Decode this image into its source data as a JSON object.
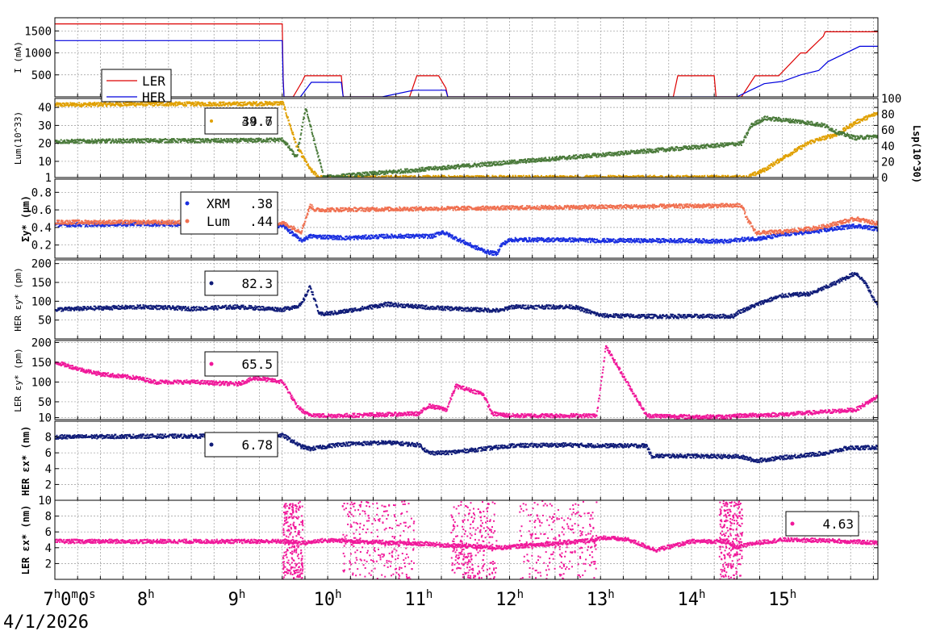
{
  "date": "4/1/2026",
  "x_tick_labels": [
    "7h0m0s",
    "8h",
    "9h",
    "10h",
    "11h",
    "12h",
    "13h",
    "14h",
    "15h"
  ],
  "colors": {
    "ler_current": "#dd0000",
    "her_current": "#0000dd",
    "lsp": "#e0a000",
    "lum": "#4a7a3a",
    "xrm": "#1a2fe0",
    "lum_size": "#f07050",
    "her": "#101c78",
    "ler": "#f0189a"
  },
  "chart_data": [
    {
      "type": "line",
      "ylabel": "I (mA)",
      "x_range_hours": [
        7,
        16.05
      ],
      "ylim": [
        0,
        1800
      ],
      "yticks": [
        "500",
        "1000",
        "1500"
      ],
      "grid": true,
      "legend": "top-left",
      "series": [
        {
          "name": "LER",
          "color": "#dd0000",
          "x": [
            7.0,
            9.5,
            9.51,
            9.52,
            9.62,
            9.72,
            9.75,
            10.15,
            10.17,
            10.9,
            10.98,
            11.22,
            11.3,
            11.32,
            12.2,
            13.8,
            13.85,
            14.25,
            14.27,
            14.3,
            14.55,
            14.65,
            14.7,
            14.96,
            15.2,
            15.26,
            15.45,
            15.47,
            16.05
          ],
          "y": [
            1660,
            1660,
            450,
            0,
            0,
            350,
            480,
            480,
            0,
            0,
            480,
            480,
            200,
            0,
            0,
            0,
            480,
            480,
            0,
            0,
            0,
            320,
            480,
            480,
            1000,
            1000,
            1380,
            1480,
            1480
          ]
        },
        {
          "name": "HER",
          "color": "#0000dd",
          "x": [
            7.0,
            9.5,
            9.51,
            9.52,
            9.7,
            9.82,
            10.15,
            10.17,
            10.6,
            10.95,
            11.3,
            11.32,
            14.5,
            14.65,
            14.8,
            15.0,
            15.2,
            15.4,
            15.5,
            15.7,
            15.85,
            16.05
          ],
          "y": [
            1280,
            1280,
            350,
            0,
            0,
            330,
            330,
            0,
            0,
            150,
            150,
            0,
            0,
            150,
            300,
            350,
            500,
            600,
            800,
            1000,
            1150,
            1150
          ]
        }
      ]
    },
    {
      "type": "scatter",
      "ylabel": "Lum(10^33)",
      "ylabel_right": "Lsp(10^30)",
      "ylim": [
        1,
        45
      ],
      "yticks": [
        "1",
        "10",
        "20",
        "30",
        "40"
      ],
      "yticks_right": [
        "0",
        "20",
        "40",
        "60",
        "80",
        "100"
      ],
      "legend": "top-center",
      "legend_value": "39.7",
      "legend_value_overlap": "44.6",
      "series": [
        {
          "name": "Lsp",
          "axis": "right",
          "color": "#e0a000",
          "x": [
            7.0,
            8.0,
            9.0,
            9.5,
            9.65,
            9.8,
            9.9,
            14.6,
            14.8,
            15.0,
            15.3,
            15.6,
            15.8,
            16.05
          ],
          "y": [
            92,
            93,
            93,
            94,
            40,
            10,
            0,
            0,
            10,
            25,
            45,
            55,
            70,
            82
          ]
        },
        {
          "name": "Lum",
          "axis": "left",
          "color": "#4a7a3a",
          "x": [
            7.0,
            8.0,
            9.0,
            9.5,
            9.65,
            9.75,
            9.85,
            9.95,
            14.55,
            14.65,
            14.8,
            15.0,
            15.2,
            15.45,
            15.6,
            15.8,
            16.05
          ],
          "y": [
            21,
            21.5,
            21.5,
            22,
            12,
            40,
            20,
            1,
            20,
            30,
            34,
            33,
            32,
            30,
            26,
            23,
            24
          ]
        }
      ]
    },
    {
      "type": "scatter",
      "ylabel": "Σy* (µm)",
      "ylim": [
        0.05,
        0.95
      ],
      "yticks": [
        "0.2",
        "0.4",
        "0.6",
        "0.8"
      ],
      "legend": "top-center",
      "series": [
        {
          "name": "XRM",
          "value": ".38",
          "color": "#1a2fe0",
          "x": [
            7.0,
            8.0,
            9.0,
            9.5,
            9.7,
            9.8,
            10.2,
            10.65,
            11.0,
            11.15,
            11.25,
            11.6,
            11.75,
            11.85,
            11.9,
            12.0,
            12.6,
            13.0,
            13.5,
            14.0,
            14.4,
            14.5,
            14.8,
            15.0,
            15.4,
            15.8,
            16.05
          ],
          "y": [
            0.43,
            0.44,
            0.43,
            0.42,
            0.25,
            0.3,
            0.28,
            0.3,
            0.3,
            0.3,
            0.35,
            0.18,
            0.12,
            0.1,
            0.2,
            0.26,
            0.26,
            0.25,
            0.25,
            0.25,
            0.24,
            0.26,
            0.28,
            0.32,
            0.36,
            0.42,
            0.38
          ]
        },
        {
          "name": "Lum",
          "value": ".44",
          "color": "#f07050",
          "x": [
            7.0,
            8.0,
            9.0,
            9.5,
            9.7,
            9.75,
            9.8,
            9.85,
            14.55,
            14.6,
            14.7,
            15.0,
            15.4,
            15.8,
            16.05
          ],
          "y": [
            0.46,
            0.46,
            0.45,
            0.45,
            0.35,
            0.5,
            0.65,
            0.6,
            0.65,
            0.5,
            0.34,
            0.35,
            0.4,
            0.5,
            0.44
          ]
        }
      ]
    },
    {
      "type": "scatter",
      "ylabel": "HER εy* (pm)",
      "ylim": [
        0,
        210
      ],
      "yticks": [
        "50",
        "100",
        "150",
        "200"
      ],
      "legend": "top-center",
      "series": [
        {
          "name": "HER εy*",
          "value": "82.3",
          "color": "#101c78",
          "x": [
            7.0,
            7.5,
            8.0,
            8.5,
            9.0,
            9.5,
            9.7,
            9.8,
            9.9,
            10.1,
            10.65,
            11.0,
            11.2,
            11.9,
            12.0,
            12.5,
            12.7,
            13.0,
            13.5,
            14.0,
            14.45,
            14.5,
            14.8,
            15.0,
            15.3,
            15.5,
            15.8,
            15.9,
            16.05
          ],
          "y": [
            78,
            82,
            85,
            80,
            85,
            78,
            90,
            140,
            65,
            70,
            92,
            85,
            82,
            75,
            85,
            85,
            85,
            62,
            60,
            60,
            60,
            70,
            100,
            115,
            120,
            140,
            175,
            150,
            82
          ]
        }
      ]
    },
    {
      "type": "scatter",
      "ylabel": "LER εy* (pm)",
      "ylim": [
        5,
        205
      ],
      "yticks": [
        "10",
        "50",
        "100",
        "150",
        "200"
      ],
      "legend": "top-center",
      "series": [
        {
          "name": "LER εy*",
          "value": "65.5",
          "color": "#f0189a",
          "x": [
            7.0,
            7.3,
            7.5,
            7.9,
            8.1,
            8.5,
            9.0,
            9.2,
            9.5,
            9.65,
            9.75,
            9.9,
            10.15,
            11.0,
            11.1,
            11.3,
            11.4,
            11.7,
            11.8,
            12.0,
            12.2,
            12.95,
            13.05,
            13.5,
            14.0,
            14.45,
            14.5,
            15.0,
            15.5,
            15.8,
            16.05
          ],
          "y": [
            150,
            130,
            120,
            110,
            100,
            100,
            95,
            110,
            100,
            40,
            20,
            15,
            15,
            20,
            40,
            30,
            90,
            70,
            20,
            15,
            15,
            15,
            190,
            15,
            12,
            12,
            15,
            18,
            25,
            30,
            65
          ]
        }
      ]
    },
    {
      "type": "scatter",
      "ylabel": "HER εx* (nm)",
      "ylim": [
        0,
        10
      ],
      "yticks": [
        "2",
        "4",
        "6",
        "8"
      ],
      "legend": "top-center",
      "series": [
        {
          "name": "HER εx*",
          "value": "6.78",
          "color": "#101c78",
          "x": [
            7.0,
            8.0,
            9.0,
            9.5,
            9.7,
            9.8,
            10.15,
            10.65,
            11.0,
            11.1,
            11.3,
            11.95,
            12.0,
            12.6,
            13.0,
            13.5,
            13.55,
            14.0,
            14.45,
            14.5,
            14.7,
            15.0,
            15.5,
            15.7,
            16.05
          ],
          "y": [
            8.0,
            8.1,
            8.1,
            8.2,
            6.8,
            6.5,
            7.1,
            7.3,
            7.0,
            6.0,
            6.0,
            6.8,
            6.9,
            7.0,
            6.9,
            6.9,
            5.6,
            5.6,
            5.5,
            5.6,
            5.0,
            5.4,
            6.0,
            6.6,
            6.7
          ]
        }
      ]
    },
    {
      "type": "scatter",
      "ylabel": "LER εx* (nm)",
      "ylim": [
        0,
        10
      ],
      "yticks": [
        "2",
        "4",
        "6",
        "8",
        "10"
      ],
      "legend": "top-right",
      "series": [
        {
          "name": "LER εx*",
          "value": "4.63",
          "color": "#f0189a",
          "x": [
            7.0,
            8.0,
            9.0,
            9.5,
            9.75,
            9.9,
            10.15,
            10.9,
            11.1,
            11.3,
            11.9,
            12.1,
            12.95,
            13.0,
            13.3,
            13.6,
            14.0,
            14.4,
            14.45,
            14.55,
            14.7,
            15.0,
            15.5,
            16.05
          ],
          "y": [
            4.8,
            4.8,
            4.8,
            4.8,
            4.6,
            4.9,
            4.9,
            4.5,
            4.5,
            4.3,
            4.0,
            4.2,
            5.0,
            5.3,
            5.0,
            3.7,
            4.8,
            4.8,
            4.0,
            4.2,
            4.6,
            5.0,
            4.9,
            4.6
          ]
        }
      ]
    }
  ]
}
